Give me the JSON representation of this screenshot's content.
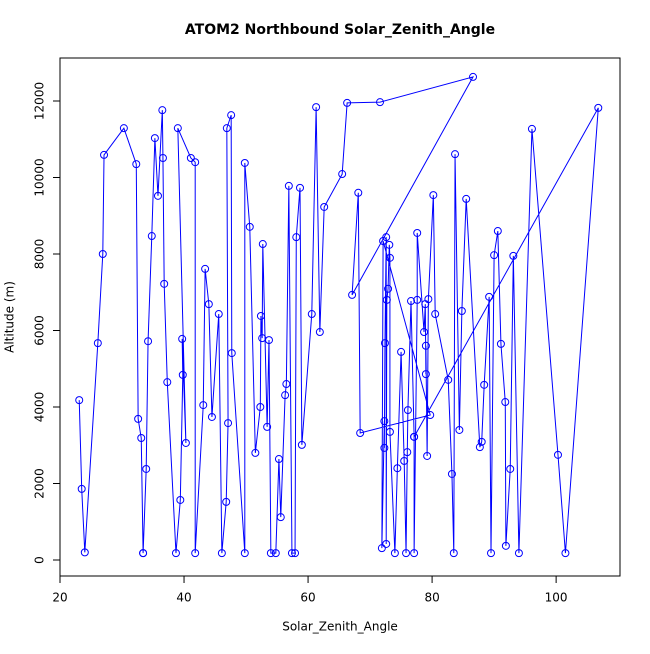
{
  "chart_data": {
    "type": "line",
    "title": "ATOM2 Northbound Solar_Zenith_Angle",
    "x_label": "Solar_Zenith_Angle",
    "y_label": "Altitude (m)",
    "marker": "circle",
    "color": "#0000ff",
    "x": [
      23.1,
      23.5,
      24,
      26.1,
      26.9,
      27.1,
      30.3,
      32.3,
      32.6,
      33.1,
      33.4,
      33.4,
      33.9,
      34.2,
      34.8,
      35.3,
      35.8,
      36.5,
      36.6,
      36.8,
      37.3,
      38.7,
      39.4,
      39.8,
      39.7,
      40.3,
      39,
      41.1,
      41.8,
      41.8,
      43.1,
      43.4,
      44,
      44.5,
      45.6,
      46.1,
      46.8,
      47.1,
      46.9,
      47.6,
      47.7,
      49.8,
      49.8,
      50.6,
      51.5,
      52.3,
      52.4,
      52.6,
      52.7,
      53.4,
      53.7,
      54,
      54.8,
      55.3,
      55.6,
      56.3,
      56.5,
      56.9,
      57.4,
      57.9,
      58.1,
      58.7,
      59,
      60.6,
      61.3,
      61.9,
      62.6,
      65.5,
      66.3,
      71.6,
      86.6,
      67.1,
      68.1,
      68.4,
      79.7,
      72.1,
      71.9,
      72.3,
      72.3,
      72.4,
      72.6,
      72.6,
      72.7,
      72.9,
      73.1,
      73.2,
      73.2,
      74,
      74.4,
      75,
      75.5,
      75.8,
      76,
      76.1,
      76.6,
      77.1,
      77.1,
      77.6,
      77.6,
      78.7,
      78.9,
      79,
      79,
      79.2,
      79.4,
      80.2,
      80.5,
      82.6,
      83.2,
      83.5,
      83.7,
      84.4,
      84.8,
      85.5,
      87.7,
      88,
      88.4,
      89.2,
      89.5,
      90,
      90.6,
      91.1,
      91.8,
      91.9,
      92.6,
      93.1,
      94,
      96.1,
      100.3,
      101.5,
      106.8,
      77.1
    ],
    "values": [
      4180,
      1860,
      200,
      5670,
      8000,
      10590,
      11290,
      10350,
      3690,
      3190,
      180,
      180,
      2380,
      5720,
      8470,
      11030,
      9520,
      11760,
      10510,
      7220,
      4650,
      180,
      1570,
      4840,
      5780,
      3060,
      11290,
      10510,
      10400,
      180,
      4050,
      7610,
      6690,
      3740,
      6430,
      180,
      1520,
      3580,
      11290,
      11630,
      5410,
      180,
      10380,
      8710,
      2800,
      4000,
      6380,
      5800,
      8260,
      3480,
      5750,
      180,
      180,
      2640,
      1120,
      4310,
      4600,
      9780,
      180,
      180,
      8440,
      9730,
      3010,
      6430,
      11840,
      5960,
      9230,
      10090,
      11950,
      11970,
      12630,
      6930,
      9600,
      3320,
      3790,
      8340,
      310,
      3630,
      2930,
      5670,
      8440,
      420,
      6800,
      7090,
      8240,
      7900,
      3350,
      180,
      2400,
      5440,
      2590,
      180,
      2820,
      3920,
      6770,
      3220,
      180,
      6800,
      8550,
      5960,
      6690,
      4860,
      5600,
      2720,
      6820,
      9540,
      6430,
      4710,
      2250,
      180,
      10610,
      3400,
      6510,
      9440,
      2950,
      3090,
      4580,
      6880,
      180,
      7970,
      8600,
      5650,
      4130,
      370,
      2380,
      7950,
      180,
      11270,
      2750,
      180,
      11820,
      3220
    ],
    "xlim": [
      20,
      110.3
    ],
    "ylim": [
      -418,
      13124
    ],
    "xticks": [
      20,
      40,
      60,
      80,
      100
    ],
    "yticks": [
      0,
      2000,
      4000,
      6000,
      8000,
      10000,
      12000
    ]
  }
}
